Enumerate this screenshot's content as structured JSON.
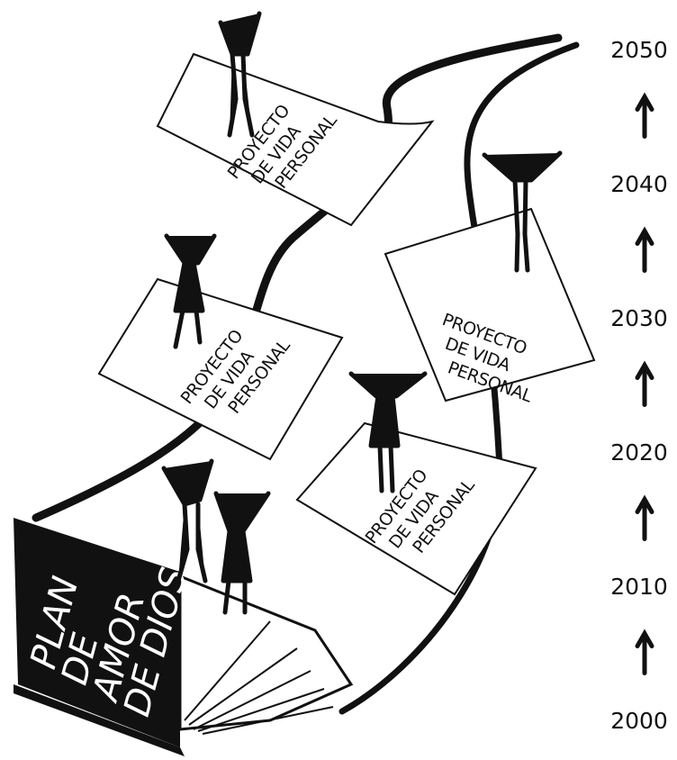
{
  "book": {
    "title_lines": [
      "PLAN",
      "DE",
      "AMOR",
      "DE DIOS"
    ]
  },
  "cards": [
    {
      "lines": [
        "PROYECTO",
        "DE VIDA",
        "PERSONAL"
      ]
    },
    {
      "lines": [
        "PROYECTO",
        "DE VIDA",
        "PERSONAL"
      ]
    },
    {
      "lines": [
        "PROYECTO",
        "DE VIDA",
        "PERSONAL"
      ]
    },
    {
      "lines": [
        "PROYECTO",
        "DE VIDA",
        "PERSONAL"
      ]
    }
  ],
  "timeline": {
    "years": [
      "2050",
      "2040",
      "2030",
      "2020",
      "2010",
      "2000"
    ]
  }
}
